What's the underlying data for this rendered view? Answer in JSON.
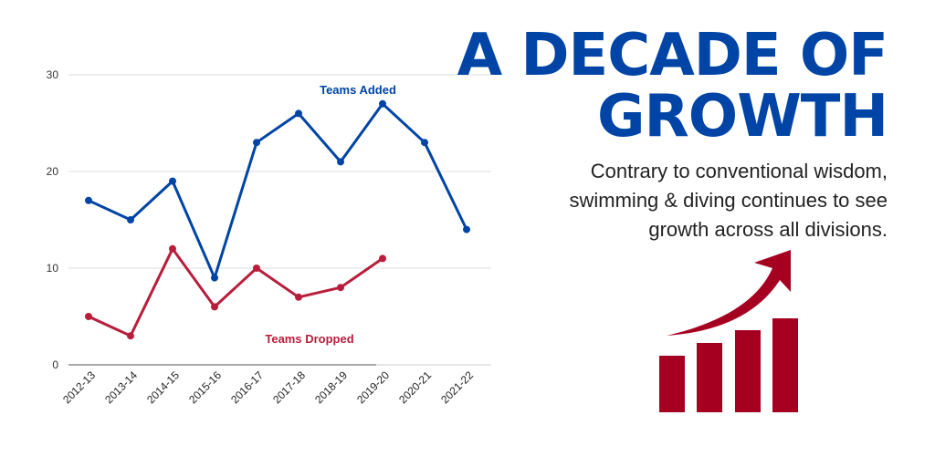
{
  "headline": {
    "line1": "A DECADE OF",
    "line2": "GROWTH"
  },
  "tagline": "Contrary to conventional wisdom, swimming & diving continues to see growth across all divisions.",
  "colors": {
    "added": "#0044a5",
    "dropped": "#b81e3b",
    "grid": "#dddddd",
    "icon": "#a50020"
  },
  "icons": {
    "growth": "bar-chart-with-rising-arrow-icon"
  },
  "chart_data": {
    "type": "line",
    "categories": [
      "2012-13",
      "2013-14",
      "2014-15",
      "2015-16",
      "2016-17",
      "2017-18",
      "2018-19",
      "2019-20",
      "2020-21",
      "2021-22"
    ],
    "series": [
      {
        "name": "Teams Added",
        "values": [
          17,
          15,
          19,
          9,
          23,
          26,
          21,
          27,
          23,
          14
        ]
      },
      {
        "name": "Teams Dropped",
        "values": [
          5,
          3,
          12,
          6,
          10,
          7,
          8,
          11,
          null,
          null
        ]
      }
    ],
    "yticks": [
      0,
      10,
      20,
      30
    ],
    "ylim": [
      0,
      30
    ],
    "title": "",
    "xlabel": "",
    "ylabel": "",
    "grid": true
  }
}
